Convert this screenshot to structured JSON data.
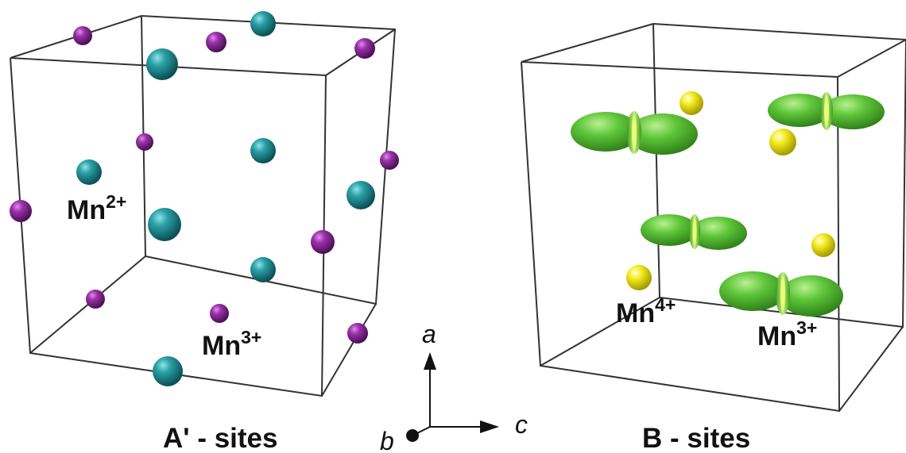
{
  "panels": {
    "left": {
      "title": "A' - sites",
      "labels": {
        "mn2": {
          "base": "Mn",
          "charge": "2+"
        },
        "mn3": {
          "base": "Mn",
          "charge": "3+"
        }
      }
    },
    "right": {
      "title": "B - sites",
      "labels": {
        "mn4": {
          "base": "Mn",
          "charge": "4+"
        },
        "mn3": {
          "base": "Mn",
          "charge": "3+"
        }
      }
    }
  },
  "axes": {
    "a": "a",
    "b": "b",
    "c": "c"
  },
  "colors": {
    "teal_atom": "#1f8f95",
    "purple_atom": "#8e2a9a",
    "yellow_atom": "#f2ea1a",
    "orbital_green": "#57c43a",
    "edge": "#333333"
  }
}
